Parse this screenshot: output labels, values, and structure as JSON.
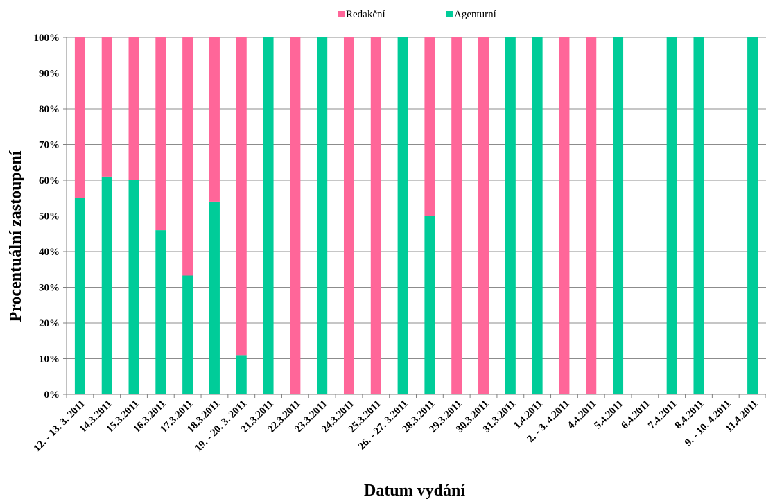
{
  "chart_data": {
    "type": "bar",
    "stacked": true,
    "normalized": true,
    "xlabel": "Datum vydání",
    "ylabel": "Procentuální zastoupení",
    "ylim": [
      0,
      100
    ],
    "yticks": [
      "0%",
      "10%",
      "20%",
      "30%",
      "40%",
      "50%",
      "60%",
      "70%",
      "80%",
      "90%",
      "100%"
    ],
    "grid": true,
    "legend_position": "top",
    "categories": [
      "12. - 13. 3. 2011",
      "14.3.2011",
      "15.3.2011",
      "16.3.2011",
      "17.3.2011",
      "18.3.2011",
      "19. - 20. 3. 2011",
      "21.3.2011",
      "22.3.2011",
      "23.3.2011",
      "24.3.2011",
      "25.3.2011",
      "26. - 27. 3.2011",
      "28.3.2011",
      "29.3.2011",
      "30.3.2011",
      "31.3.2011",
      "1.4.2011",
      "2. - 3. 4.2011",
      "4.4.2011",
      "5.4.2011",
      "6.4.2011",
      "7.4.2011",
      "8.4.2011",
      "9. - 10. 4.2011",
      "11.4.2011"
    ],
    "series": [
      {
        "name": "Agenturní",
        "color": "#00CC99",
        "values": [
          55,
          61,
          60,
          46,
          33.3,
          54,
          11,
          100,
          0,
          100,
          0,
          0,
          100,
          50,
          0,
          0,
          100,
          100,
          0,
          0,
          100,
          0,
          100,
          100,
          0,
          100
        ]
      },
      {
        "name": "Redakční",
        "color": "#FF6699",
        "values": [
          45,
          39,
          40,
          54,
          66.7,
          46,
          89,
          0,
          100,
          0,
          100,
          100,
          0,
          50,
          100,
          100,
          0,
          0,
          100,
          100,
          0,
          0,
          0,
          0,
          0,
          0
        ]
      }
    ],
    "legend": [
      {
        "label": "Redakční",
        "color": "#FF6699"
      },
      {
        "label": "Agenturní",
        "color": "#00CC99"
      }
    ]
  }
}
